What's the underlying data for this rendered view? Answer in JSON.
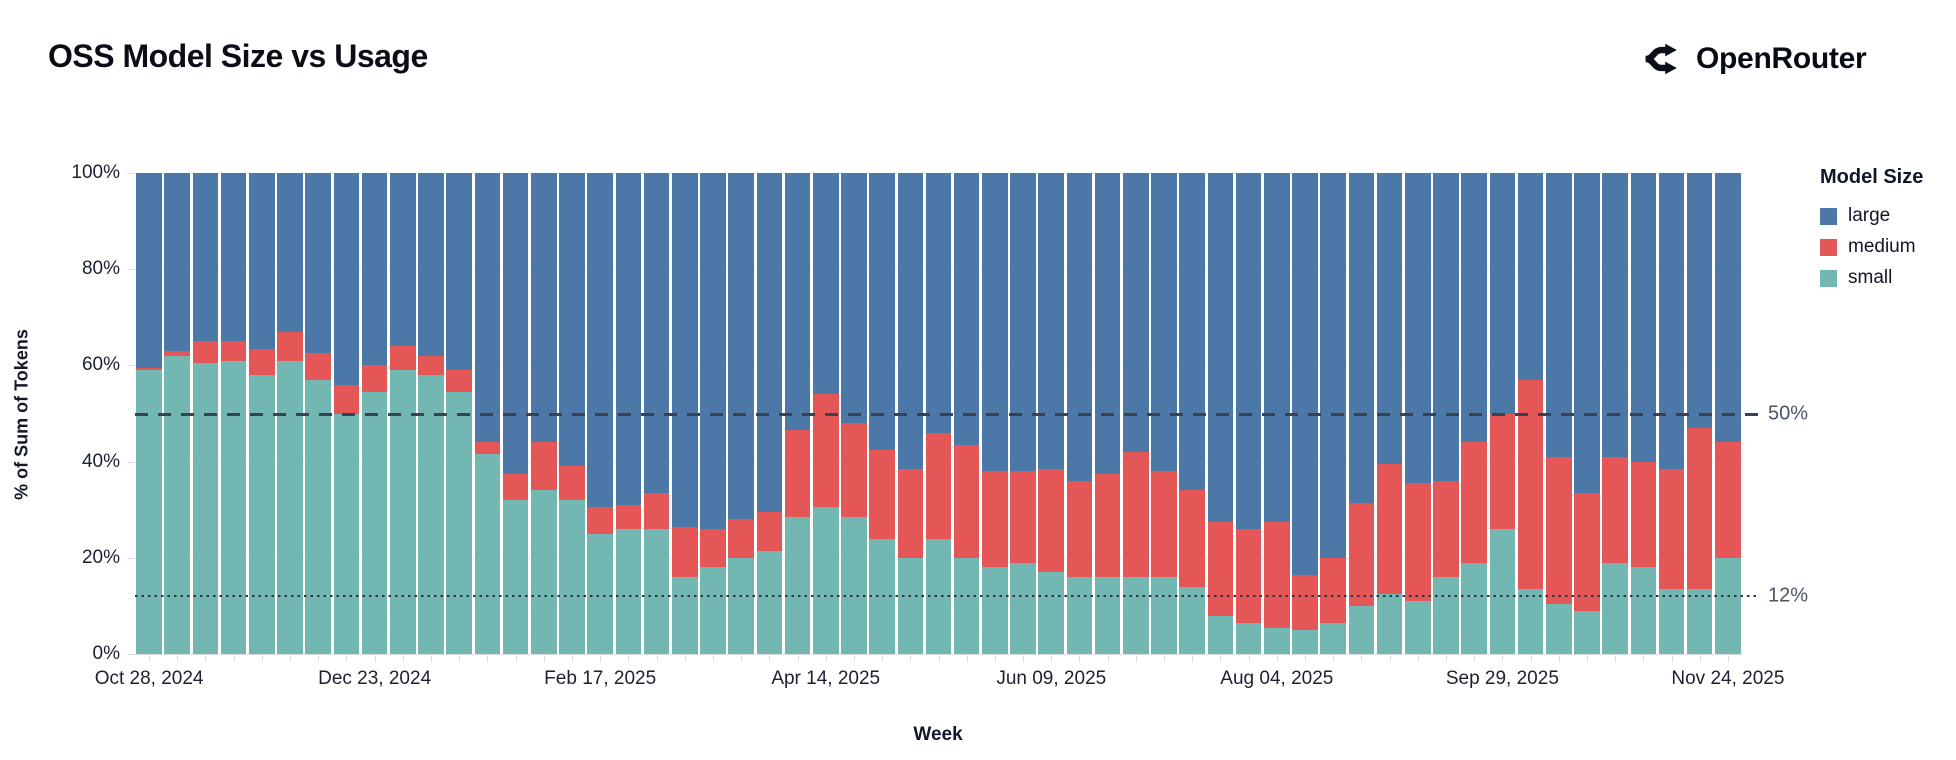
{
  "header": {
    "title": "OSS Model Size vs Usage",
    "brand": "OpenRouter"
  },
  "icons": {
    "brand_mark": "openrouter-split-arrows"
  },
  "chart_data": {
    "type": "bar",
    "subtype": "stacked-percent",
    "title": "OSS Model Size vs Usage",
    "xlabel": "Week",
    "ylabel": "% of Sum of Tokens",
    "ylim": [
      0,
      100
    ],
    "n_bars": 57,
    "grid": "horizontal",
    "legend_position": "right",
    "y_axis": {
      "ticks": [
        {
          "label": "0%",
          "value": 0
        },
        {
          "label": "20%",
          "value": 20
        },
        {
          "label": "40%",
          "value": 40
        },
        {
          "label": "60%",
          "value": 60
        },
        {
          "label": "80%",
          "value": 80
        },
        {
          "label": "100%",
          "value": 100
        }
      ]
    },
    "x_axis": {
      "ticks": [
        {
          "label": "Oct 28, 2024",
          "bar_index": 0
        },
        {
          "label": "Dec 23, 2024",
          "bar_index": 8
        },
        {
          "label": "Feb 17, 2025",
          "bar_index": 16
        },
        {
          "label": "Apr 14, 2025",
          "bar_index": 24
        },
        {
          "label": "Jun 09, 2025",
          "bar_index": 32
        },
        {
          "label": "Aug 04, 2025",
          "bar_index": 40
        },
        {
          "label": "Sep 29, 2025",
          "bar_index": 48
        },
        {
          "label": "Nov 24, 2025",
          "bar_index": 56
        }
      ]
    },
    "legend": {
      "title": "Model Size",
      "entries": [
        {
          "label": "large",
          "color": "#4c78a8"
        },
        {
          "label": "medium",
          "color": "#e45756"
        },
        {
          "label": "small",
          "color": "#72b7b2"
        }
      ]
    },
    "reference_lines": [
      {
        "value": 50,
        "label": "50%",
        "style": "dashed"
      },
      {
        "value": 12,
        "label": "12%",
        "style": "dotted"
      }
    ],
    "series": [
      {
        "name": "small",
        "color": "#72b7b2",
        "values": [
          59,
          62,
          60.5,
          61,
          58,
          61,
          57,
          50,
          54.5,
          59,
          58,
          54.5,
          41.5,
          32,
          34,
          32,
          25,
          26,
          26,
          16,
          18,
          20,
          21.5,
          28.5,
          30.5,
          28.5,
          24,
          20,
          24,
          20,
          18,
          19,
          17,
          16,
          16,
          16,
          16,
          14,
          8,
          6.5,
          5.5,
          5,
          6.5,
          10,
          12.5,
          11,
          16,
          19,
          26,
          13.5,
          10.5,
          9,
          19,
          18,
          13.5,
          13.5,
          20
        ]
      },
      {
        "name": "medium",
        "color": "#e45756",
        "values": [
          0.5,
          1,
          4.5,
          4,
          5.5,
          6,
          5.5,
          6,
          5.5,
          5,
          4,
          4.5,
          2.5,
          5.5,
          10,
          7,
          5.5,
          5,
          7.5,
          10.5,
          8,
          8,
          8,
          18,
          23.5,
          19.5,
          18.5,
          18.5,
          22,
          23.5,
          20,
          19,
          21.5,
          20,
          21.5,
          26,
          22,
          20,
          19.5,
          19.5,
          22,
          11.5,
          13.5,
          21.5,
          27,
          24.5,
          20,
          25,
          24,
          43.5,
          30.5,
          24.5,
          22,
          22,
          25,
          33.5,
          24
        ]
      },
      {
        "name": "large",
        "color": "#4c78a8",
        "values": [
          40.5,
          37,
          35,
          35,
          36.5,
          33,
          37.5,
          44,
          40,
          36,
          38,
          41,
          56,
          62.5,
          56,
          61,
          69.5,
          69,
          66.5,
          73.5,
          74,
          72,
          70.5,
          53.5,
          46,
          52,
          57.5,
          61.5,
          54,
          56.5,
          62,
          62,
          61.5,
          64,
          62.5,
          58,
          62,
          66,
          72.5,
          74,
          72.5,
          83.5,
          80,
          68.5,
          60.5,
          64.5,
          64,
          56,
          50,
          43,
          59,
          66.5,
          59,
          60,
          61.5,
          53,
          56
        ]
      }
    ]
  }
}
